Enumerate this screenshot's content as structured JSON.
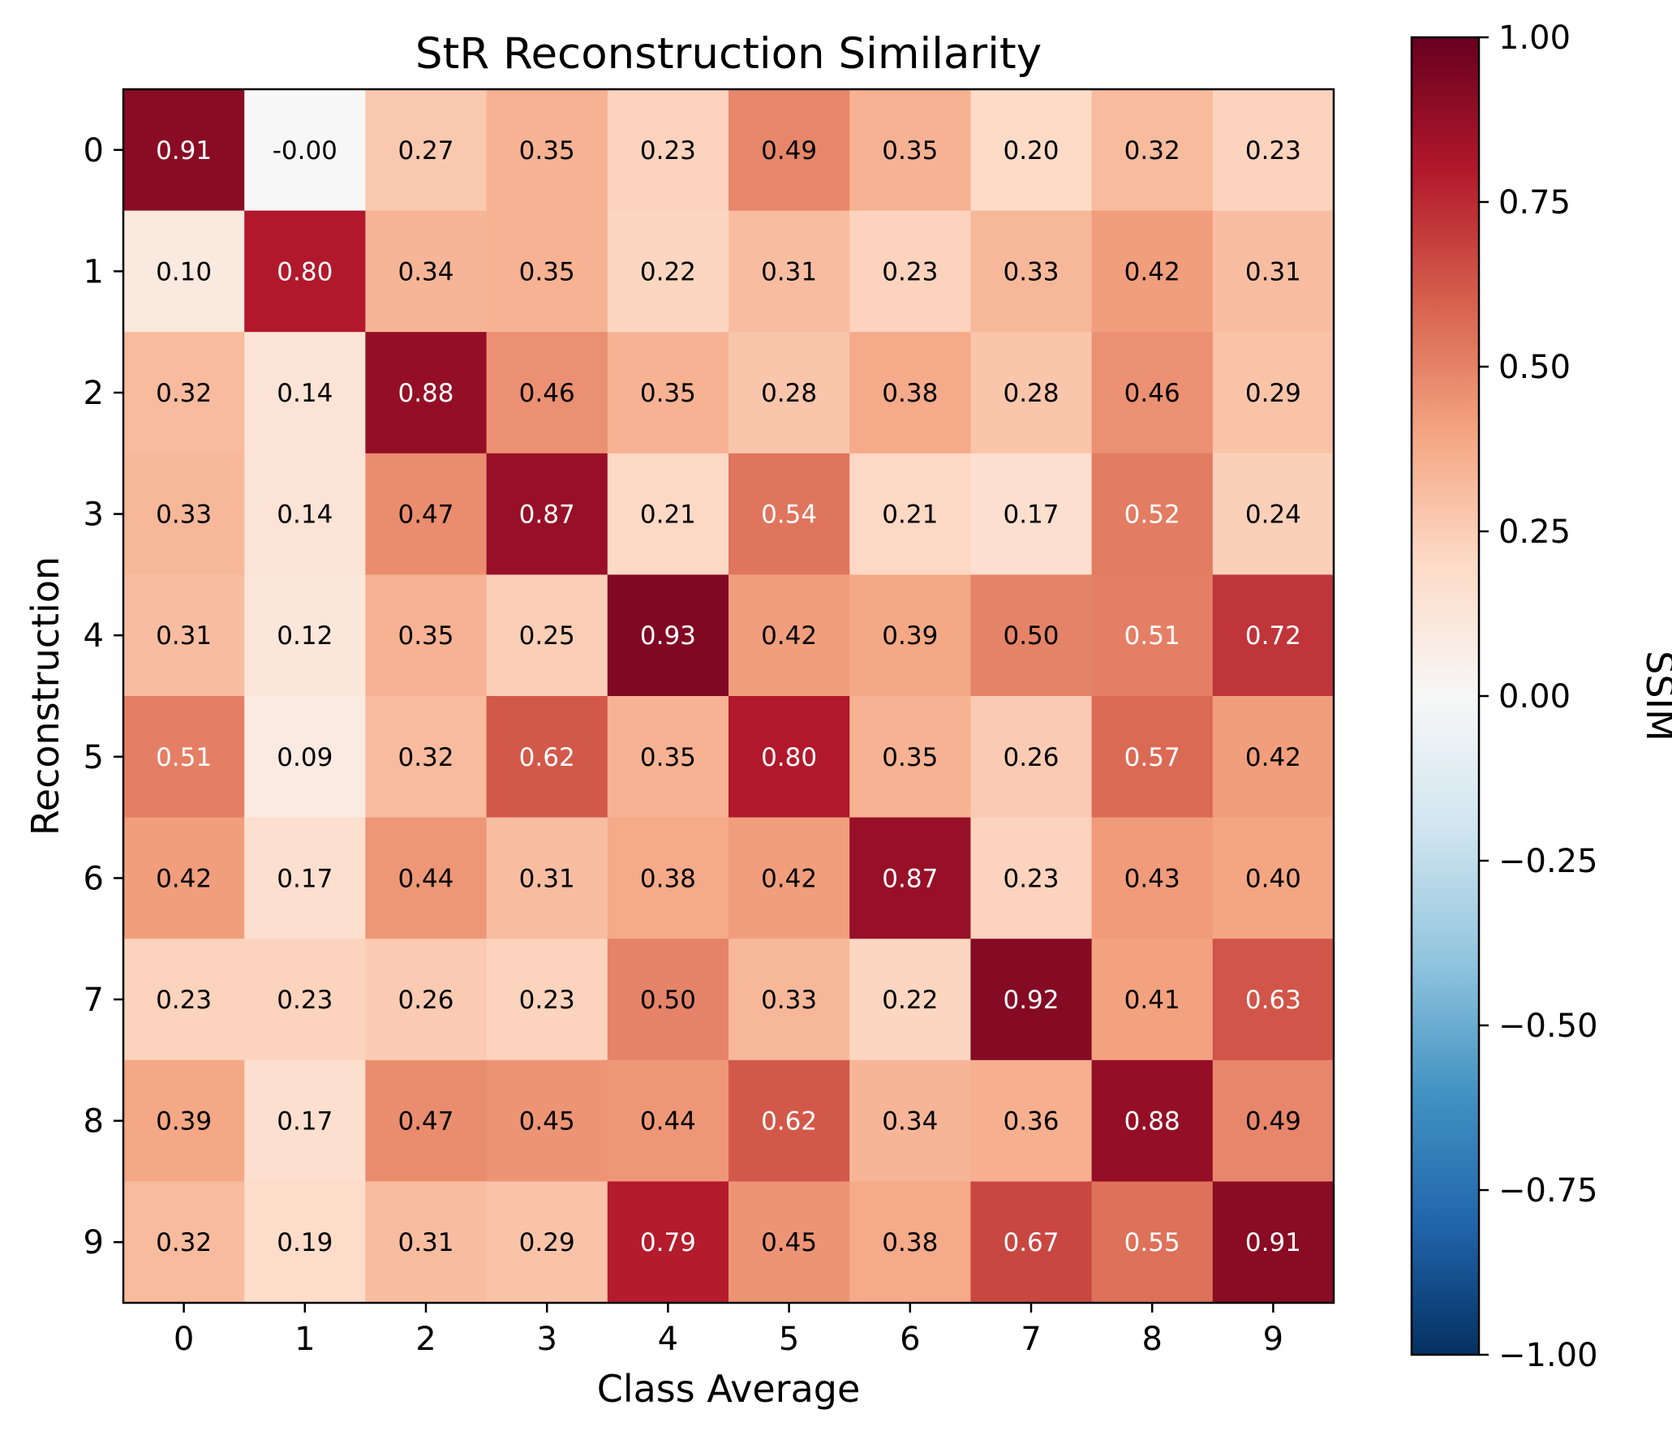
{
  "chart_data": {
    "type": "heatmap",
    "title": "StR Reconstruction Similarity",
    "xlabel": "Class Average",
    "ylabel": "Reconstruction",
    "x_categories": [
      "0",
      "1",
      "2",
      "3",
      "4",
      "5",
      "6",
      "7",
      "8",
      "9"
    ],
    "y_categories": [
      "0",
      "1",
      "2",
      "3",
      "4",
      "5",
      "6",
      "7",
      "8",
      "9"
    ],
    "values": [
      [
        0.91,
        -0.0,
        0.27,
        0.35,
        0.23,
        0.49,
        0.35,
        0.2,
        0.32,
        0.23
      ],
      [
        0.1,
        0.8,
        0.34,
        0.35,
        0.22,
        0.31,
        0.23,
        0.33,
        0.42,
        0.31
      ],
      [
        0.32,
        0.14,
        0.88,
        0.46,
        0.35,
        0.28,
        0.38,
        0.28,
        0.46,
        0.29
      ],
      [
        0.33,
        0.14,
        0.47,
        0.87,
        0.21,
        0.54,
        0.21,
        0.17,
        0.52,
        0.24
      ],
      [
        0.31,
        0.12,
        0.35,
        0.25,
        0.93,
        0.42,
        0.39,
        0.5,
        0.51,
        0.72
      ],
      [
        0.51,
        0.09,
        0.32,
        0.62,
        0.35,
        0.8,
        0.35,
        0.26,
        0.57,
        0.42
      ],
      [
        0.42,
        0.17,
        0.44,
        0.31,
        0.38,
        0.42,
        0.87,
        0.23,
        0.43,
        0.4
      ],
      [
        0.23,
        0.23,
        0.26,
        0.23,
        0.5,
        0.33,
        0.22,
        0.92,
        0.41,
        0.63
      ],
      [
        0.39,
        0.17,
        0.47,
        0.45,
        0.44,
        0.62,
        0.34,
        0.36,
        0.88,
        0.49
      ],
      [
        0.32,
        0.19,
        0.31,
        0.29,
        0.79,
        0.45,
        0.38,
        0.67,
        0.55,
        0.91
      ]
    ],
    "cell_labels": [
      [
        "0.91",
        "-0.00",
        "0.27",
        "0.35",
        "0.23",
        "0.49",
        "0.35",
        "0.20",
        "0.32",
        "0.23"
      ],
      [
        "0.10",
        "0.80",
        "0.34",
        "0.35",
        "0.22",
        "0.31",
        "0.23",
        "0.33",
        "0.42",
        "0.31"
      ],
      [
        "0.32",
        "0.14",
        "0.88",
        "0.46",
        "0.35",
        "0.28",
        "0.38",
        "0.28",
        "0.46",
        "0.29"
      ],
      [
        "0.33",
        "0.14",
        "0.47",
        "0.87",
        "0.21",
        "0.54",
        "0.21",
        "0.17",
        "0.52",
        "0.24"
      ],
      [
        "0.31",
        "0.12",
        "0.35",
        "0.25",
        "0.93",
        "0.42",
        "0.39",
        "0.50",
        "0.51",
        "0.72"
      ],
      [
        "0.51",
        "0.09",
        "0.32",
        "0.62",
        "0.35",
        "0.80",
        "0.35",
        "0.26",
        "0.57",
        "0.42"
      ],
      [
        "0.42",
        "0.17",
        "0.44",
        "0.31",
        "0.38",
        "0.42",
        "0.87",
        "0.23",
        "0.43",
        "0.40"
      ],
      [
        "0.23",
        "0.23",
        "0.26",
        "0.23",
        "0.50",
        "0.33",
        "0.22",
        "0.92",
        "0.41",
        "0.63"
      ],
      [
        "0.39",
        "0.17",
        "0.47",
        "0.45",
        "0.44",
        "0.62",
        "0.34",
        "0.36",
        "0.88",
        "0.49"
      ],
      [
        "0.32",
        "0.19",
        "0.31",
        "0.29",
        "0.79",
        "0.45",
        "0.38",
        "0.67",
        "0.55",
        "0.91"
      ]
    ],
    "colorbar": {
      "label": "SSIM",
      "range": [
        -1.0,
        1.0
      ],
      "colormap": "RdBu_r",
      "ticks": [
        1.0,
        0.75,
        0.5,
        0.25,
        0.0,
        -0.25,
        -0.5,
        -0.75,
        -1.0
      ],
      "tick_labels": [
        "1.00",
        "0.75",
        "0.50",
        "0.25",
        "0.00",
        "−0.25",
        "−0.50",
        "−0.75",
        "−1.00"
      ]
    },
    "annotation_text_colors": {
      "dark_cell": "#ffffff",
      "light_cell": "#000000"
    },
    "grid": false,
    "legend": "colorbar-right"
  }
}
